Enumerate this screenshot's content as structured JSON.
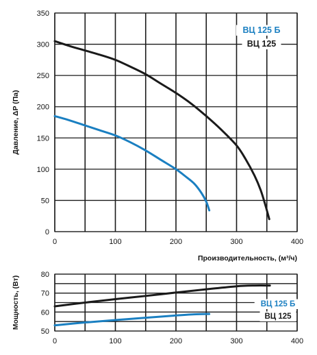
{
  "colors": {
    "blue": "#1a7fc1",
    "black": "#1a1a1a",
    "grid": "#1a1a1a"
  },
  "chart_data": [
    {
      "type": "line",
      "ylabel": "Давление, ΔP (Па)",
      "xlabel": "Производительность, (м³/ч)",
      "xlim": [
        0,
        400
      ],
      "ylim": [
        0,
        350
      ],
      "x_ticks": [
        0,
        100,
        200,
        300,
        400
      ],
      "y_ticks": [
        0,
        50,
        100,
        150,
        200,
        250,
        300,
        350
      ],
      "grid": true,
      "legend_position": "top-right",
      "series": [
        {
          "name": "ВЦ 125 Б",
          "color": "#1a7fc1",
          "points": [
            [
              0,
              185
            ],
            [
              25,
              178
            ],
            [
              50,
              170
            ],
            [
              75,
              162
            ],
            [
              100,
              154
            ],
            [
              125,
              143
            ],
            [
              150,
              130
            ],
            [
              175,
              115
            ],
            [
              200,
              100
            ],
            [
              215,
              89
            ],
            [
              230,
              77
            ],
            [
              242,
              62
            ],
            [
              250,
              48
            ],
            [
              255,
              34
            ]
          ]
        },
        {
          "name": "ВЦ 125",
          "color": "#1a1a1a",
          "points": [
            [
              0,
              305
            ],
            [
              25,
              297
            ],
            [
              50,
              290
            ],
            [
              75,
              283
            ],
            [
              100,
              275
            ],
            [
              125,
              264
            ],
            [
              150,
              252
            ],
            [
              175,
              237
            ],
            [
              200,
              222
            ],
            [
              225,
              205
            ],
            [
              250,
              185
            ],
            [
              275,
              163
            ],
            [
              300,
              138
            ],
            [
              315,
              116
            ],
            [
              330,
              89
            ],
            [
              340,
              66
            ],
            [
              348,
              41
            ],
            [
              354,
              20
            ]
          ]
        }
      ]
    },
    {
      "type": "line",
      "ylabel": "Мощность, (Вт)",
      "xlabel": "",
      "xlim": [
        0,
        400
      ],
      "ylim": [
        50,
        80
      ],
      "x_ticks": [
        0,
        100,
        200,
        300,
        400
      ],
      "y_ticks": [
        50,
        60,
        70,
        80
      ],
      "grid": true,
      "legend_position": "bottom-right",
      "series": [
        {
          "name": "ВЦ 125 Б",
          "color": "#1a7fc1",
          "points": [
            [
              0,
              53
            ],
            [
              50,
              54.5
            ],
            [
              100,
              55.8
            ],
            [
              150,
              57
            ],
            [
              200,
              58.2
            ],
            [
              230,
              58.8
            ],
            [
              255,
              59
            ]
          ]
        },
        {
          "name": "ВЦ 125",
          "color": "#1a1a1a",
          "points": [
            [
              0,
              63
            ],
            [
              50,
              65
            ],
            [
              100,
              66.8
            ],
            [
              150,
              68.5
            ],
            [
              200,
              70.3
            ],
            [
              250,
              72
            ],
            [
              300,
              73.6
            ],
            [
              330,
              74
            ],
            [
              355,
              74
            ]
          ]
        }
      ]
    }
  ]
}
